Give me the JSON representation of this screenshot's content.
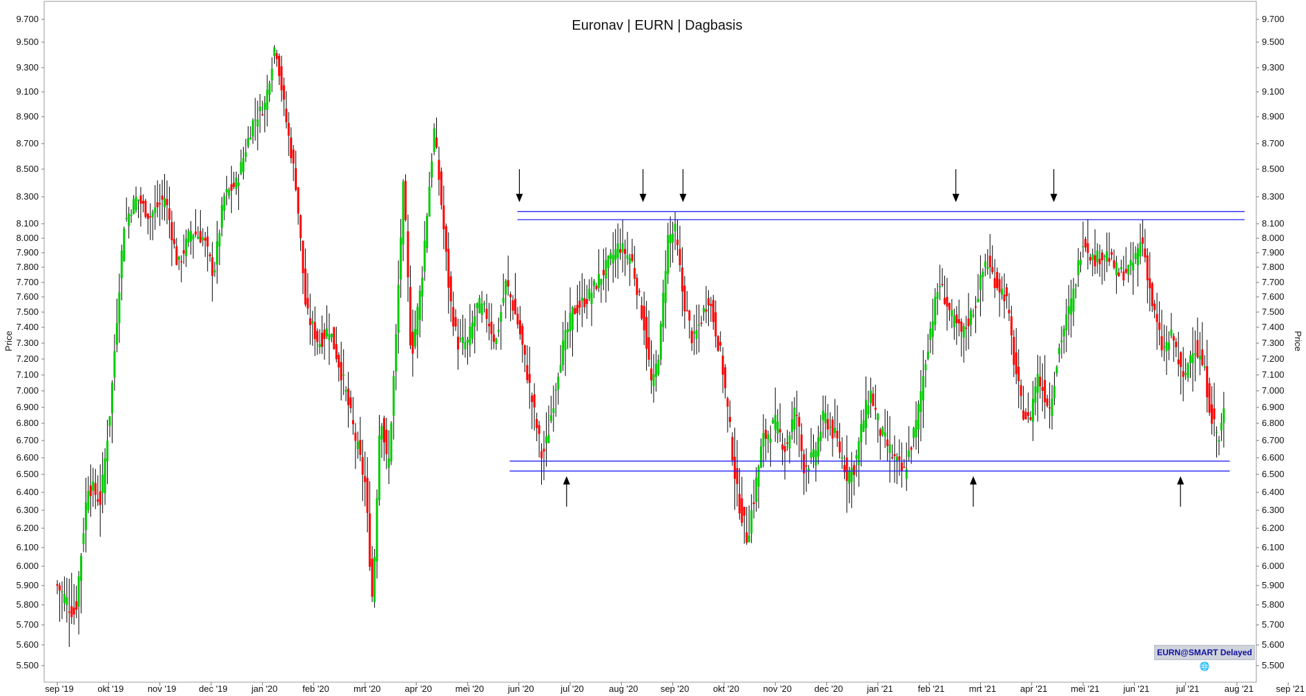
{
  "chart_data": {
    "type": "candlestick",
    "title": "Euronav | EURN | Dagbasis",
    "ylabel": "Price",
    "ylim": [
      5.4,
      9.75
    ],
    "y_ticks": [
      "9.700",
      "9.500",
      "9.300",
      "9.100",
      "8.900",
      "8.700",
      "8.500",
      "8.300",
      "8.100",
      "8.000",
      "7.900",
      "7.800",
      "7.700",
      "7.600",
      "7.500",
      "7.400",
      "7.300",
      "7.200",
      "7.100",
      "7.000",
      "6.900",
      "6.800",
      "6.700",
      "6.600",
      "6.500",
      "6.400",
      "6.300",
      "6.200",
      "6.100",
      "6.000",
      "5.900",
      "5.800",
      "5.700",
      "5.600",
      "5.500"
    ],
    "y_tick_values": [
      9.7,
      9.5,
      9.3,
      9.1,
      8.9,
      8.7,
      8.5,
      8.3,
      8.1,
      8.0,
      7.9,
      7.8,
      7.7,
      7.6,
      7.5,
      7.4,
      7.3,
      7.2,
      7.1,
      7.0,
      6.9,
      6.8,
      6.7,
      6.6,
      6.5,
      6.4,
      6.3,
      6.2,
      6.1,
      6.0,
      5.9,
      5.8,
      5.7,
      5.6,
      5.5
    ],
    "x_ticks": [
      "sep '19",
      "okt '19",
      "nov '19",
      "dec '19",
      "jan '20",
      "feb '20",
      "mrt '20",
      "apr '20",
      "mei '20",
      "jun '20",
      "jul '20",
      "aug '20",
      "sep '20",
      "okt '20",
      "nov '20",
      "dec '20",
      "jan '21",
      "feb '21",
      "mrt '21",
      "apr '21",
      "mei '21",
      "jun '21",
      "jul '21",
      "aug '21",
      "sep '21"
    ],
    "x_tick_months": [
      0,
      1,
      2,
      3,
      4,
      5,
      6,
      7,
      8,
      9,
      10,
      11,
      12,
      13,
      14,
      15,
      16,
      17,
      18,
      19,
      20,
      21,
      22,
      23,
      24
    ],
    "up_color": "#00cc00",
    "down_color": "#ff0000",
    "anchors": [
      [
        0,
        5.9
      ],
      [
        0.35,
        5.75
      ],
      [
        0.6,
        6.45
      ],
      [
        0.85,
        6.35
      ],
      [
        1.05,
        6.95
      ],
      [
        1.3,
        8.1
      ],
      [
        1.55,
        8.3
      ],
      [
        1.8,
        8.15
      ],
      [
        2.1,
        8.3
      ],
      [
        2.35,
        7.8
      ],
      [
        2.6,
        8.05
      ],
      [
        2.85,
        8.0
      ],
      [
        3.05,
        7.75
      ],
      [
        3.25,
        8.3
      ],
      [
        3.5,
        8.4
      ],
      [
        3.8,
        8.85
      ],
      [
        4.05,
        9.0
      ],
      [
        4.25,
        9.5
      ],
      [
        4.45,
        8.9
      ],
      [
        4.65,
        8.4
      ],
      [
        4.85,
        7.5
      ],
      [
        5.1,
        7.3
      ],
      [
        5.3,
        7.4
      ],
      [
        5.55,
        7.1
      ],
      [
        5.75,
        6.8
      ],
      [
        6.0,
        6.45
      ],
      [
        6.15,
        5.8
      ],
      [
        6.3,
        6.9
      ],
      [
        6.45,
        6.5
      ],
      [
        6.6,
        7.3
      ],
      [
        6.75,
        8.4
      ],
      [
        6.9,
        7.2
      ],
      [
        7.1,
        7.7
      ],
      [
        7.35,
        8.8
      ],
      [
        7.5,
        8.2
      ],
      [
        7.65,
        7.6
      ],
      [
        7.8,
        7.3
      ],
      [
        8.0,
        7.3
      ],
      [
        8.2,
        7.55
      ],
      [
        8.35,
        7.5
      ],
      [
        8.55,
        7.3
      ],
      [
        8.75,
        7.7
      ],
      [
        9.0,
        7.4
      ],
      [
        9.25,
        6.95
      ],
      [
        9.45,
        6.6
      ],
      [
        9.55,
        6.7
      ],
      [
        9.8,
        7.2
      ],
      [
        10.05,
        7.5
      ],
      [
        10.35,
        7.6
      ],
      [
        10.7,
        7.8
      ],
      [
        10.95,
        7.95
      ],
      [
        11.2,
        7.85
      ],
      [
        11.45,
        7.4
      ],
      [
        11.6,
        7.0
      ],
      [
        11.75,
        7.3
      ],
      [
        11.9,
        8.0
      ],
      [
        12.05,
        8.05
      ],
      [
        12.2,
        7.6
      ],
      [
        12.4,
        7.3
      ],
      [
        12.7,
        7.6
      ],
      [
        12.95,
        7.2
      ],
      [
        13.1,
        6.8
      ],
      [
        13.25,
        6.4
      ],
      [
        13.45,
        6.15
      ],
      [
        13.6,
        6.4
      ],
      [
        13.75,
        6.7
      ],
      [
        14.0,
        6.8
      ],
      [
        14.2,
        6.65
      ],
      [
        14.4,
        6.9
      ],
      [
        14.55,
        6.55
      ],
      [
        14.75,
        6.6
      ],
      [
        14.95,
        6.85
      ],
      [
        15.2,
        6.7
      ],
      [
        15.4,
        6.5
      ],
      [
        15.55,
        6.55
      ],
      [
        15.7,
        6.8
      ],
      [
        15.85,
        7.0
      ],
      [
        16.05,
        6.75
      ],
      [
        16.3,
        6.6
      ],
      [
        16.5,
        6.5
      ],
      [
        16.75,
        6.8
      ],
      [
        17.0,
        7.35
      ],
      [
        17.2,
        7.7
      ],
      [
        17.45,
        7.45
      ],
      [
        17.65,
        7.35
      ],
      [
        17.9,
        7.55
      ],
      [
        18.1,
        7.85
      ],
      [
        18.3,
        7.7
      ],
      [
        18.5,
        7.6
      ],
      [
        18.65,
        7.2
      ],
      [
        18.8,
        6.9
      ],
      [
        18.95,
        6.8
      ],
      [
        19.1,
        7.1
      ],
      [
        19.35,
        6.9
      ],
      [
        19.55,
        7.3
      ],
      [
        19.8,
        7.6
      ],
      [
        20.0,
        8.0
      ],
      [
        20.2,
        7.85
      ],
      [
        20.45,
        7.9
      ],
      [
        20.7,
        7.75
      ],
      [
        20.95,
        7.8
      ],
      [
        21.15,
        8.0
      ],
      [
        21.35,
        7.55
      ],
      [
        21.55,
        7.25
      ],
      [
        21.75,
        7.35
      ],
      [
        21.95,
        7.05
      ],
      [
        22.15,
        7.3
      ],
      [
        22.35,
        7.15
      ],
      [
        22.5,
        6.85
      ],
      [
        22.65,
        6.7
      ],
      [
        22.75,
        6.88
      ]
    ],
    "annotations": {
      "resistance_lines": [
        8.19,
        8.13
      ],
      "support_lines": [
        6.58,
        6.52
      ],
      "down_arrows_months": [
        9.01,
        11.42,
        12.2,
        17.52,
        19.43
      ],
      "up_arrows_months": [
        9.93,
        17.86,
        21.9
      ]
    },
    "source_badge": "EURN@SMART Delayed"
  }
}
